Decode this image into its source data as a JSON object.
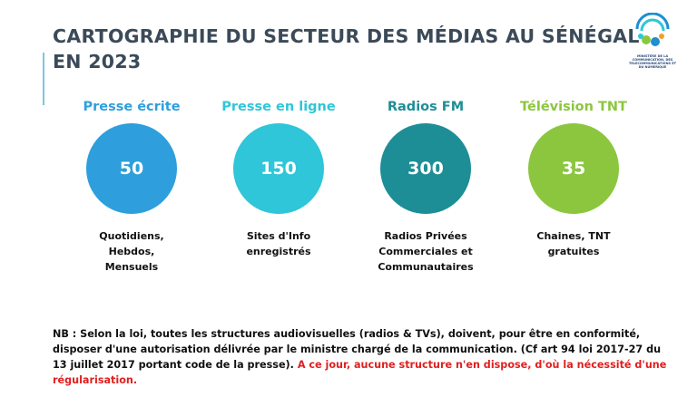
{
  "header": {
    "title_lines": [
      "CARTOGRAPHIE DU SECTEUR DES MÉDIAS AU SÉNÉGAL",
      "EN 2023"
    ]
  },
  "logo": {
    "text": "MINISTERE DE LA COMMUNICATION, DES TELECOMMUNICATIONS ET DU NUMERIQUE"
  },
  "items": [
    {
      "label": "Presse écrite",
      "value": "50",
      "color": "#2e9fdc",
      "description": [
        "Quotidiens,",
        "Hebdos,",
        "Mensuels"
      ]
    },
    {
      "label": "Presse en ligne",
      "value": "150",
      "color": "#2ec6d8",
      "description": [
        "Sites d'Info",
        "enregistrés"
      ]
    },
    {
      "label": "Radios FM",
      "value": "300",
      "color": "#1e8e96",
      "description": [
        "Radios Privées",
        "Commerciales et",
        "Communautaires"
      ]
    },
    {
      "label": "Télévision TNT",
      "value": "35",
      "color": "#8cc63f",
      "description": [
        "Chaines, TNT",
        "gratuites"
      ]
    }
  ],
  "nb": {
    "text": "NB : Selon la loi, toutes les structures audiovisuelles (radios & TVs), doivent, pour être en conformité, disposer d'une autorisation délivrée par le ministre chargé de la communication. (Cf art 94 loi 2017-27 du 13 juillet 2017 portant code de la presse).",
    "highlight": "A ce jour, aucune structure n'en dispose, d'où la nécessité d'une régularisation."
  }
}
